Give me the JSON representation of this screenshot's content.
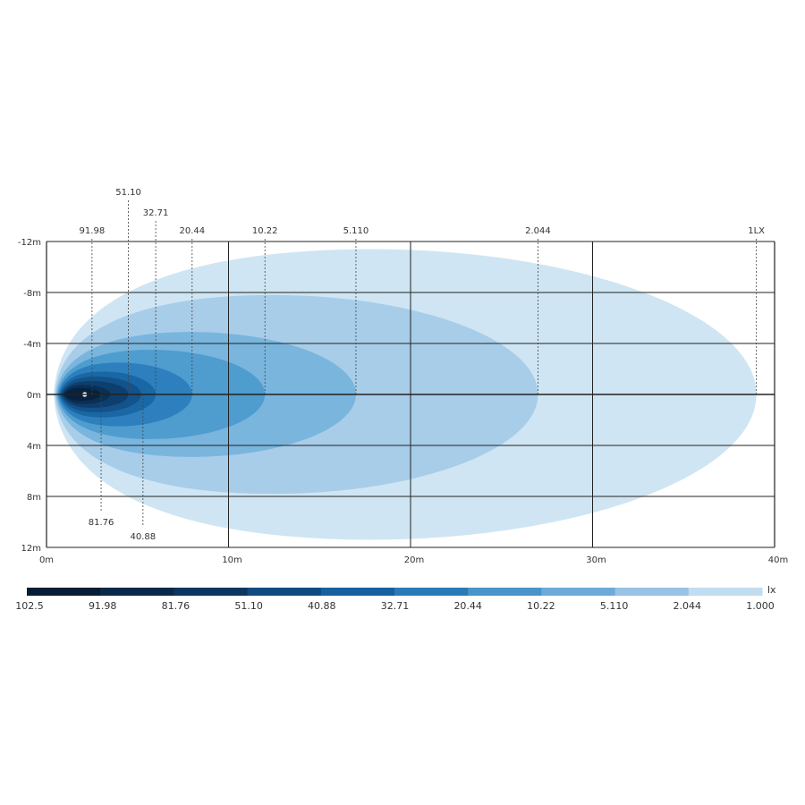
{
  "chart_data": {
    "type": "isolux",
    "x_unit": "m",
    "y_unit": "m",
    "xlim": [
      0,
      40
    ],
    "ylim": [
      -12,
      12
    ],
    "x_ticks": [
      {
        "value": 0,
        "label": "0m"
      },
      {
        "value": 10,
        "label": "10m"
      },
      {
        "value": 20,
        "label": "20m"
      },
      {
        "value": 30,
        "label": "30m"
      },
      {
        "value": 40,
        "label": "40m"
      }
    ],
    "y_ticks": [
      {
        "value": -12,
        "label": "-12m"
      },
      {
        "value": -8,
        "label": "-8m"
      },
      {
        "value": -4,
        "label": "-4m"
      },
      {
        "value": 0,
        "label": "0m"
      },
      {
        "value": 4,
        "label": "4m"
      },
      {
        "value": 8,
        "label": "8m"
      },
      {
        "value": 12,
        "label": "12m"
      }
    ],
    "grid": true,
    "source_x": 2.1,
    "contours": [
      {
        "lux": 1.0,
        "reach": 39.0,
        "half_width": 11.4,
        "color": "#cfe5f3"
      },
      {
        "lux": 2.044,
        "reach": 27.0,
        "half_width": 7.8,
        "color": "#a8cde9"
      },
      {
        "lux": 5.11,
        "reach": 17.0,
        "half_width": 4.9,
        "color": "#7ab5dd"
      },
      {
        "lux": 10.22,
        "reach": 12.0,
        "half_width": 3.5,
        "color": "#4f9ccf"
      },
      {
        "lux": 20.44,
        "reach": 8.0,
        "half_width": 2.5,
        "color": "#2d80bd"
      },
      {
        "lux": 32.71,
        "reach": 6.0,
        "half_width": 1.8,
        "color": "#1a67a5"
      },
      {
        "lux": 40.88,
        "reach": 5.2,
        "half_width": 1.4,
        "color": "#13528a"
      },
      {
        "lux": 51.1,
        "reach": 4.5,
        "half_width": 1.05,
        "color": "#0d3f6e"
      },
      {
        "lux": 81.76,
        "reach": 3.5,
        "half_width": 0.75,
        "color": "#0a2f54"
      },
      {
        "lux": 91.98,
        "reach": 3.0,
        "half_width": 0.5,
        "color": "#07223e"
      }
    ],
    "callouts_top": [
      {
        "label": "91.98",
        "x": 2.5,
        "row": 1
      },
      {
        "label": "51.10",
        "x": 4.5,
        "row": 0
      },
      {
        "label": "32.71",
        "x": 6.0,
        "row": 0.5
      },
      {
        "label": "20.44",
        "x": 8.0,
        "row": 1
      },
      {
        "label": "10.22",
        "x": 12.0,
        "row": 1
      },
      {
        "label": "5.110",
        "x": 17.0,
        "row": 1
      },
      {
        "label": "2.044",
        "x": 27.0,
        "row": 1
      },
      {
        "label": "1LX",
        "x": 39.0,
        "row": 1
      }
    ],
    "callouts_bottom": [
      {
        "label": "81.76",
        "x": 3.0,
        "y_end": 9.2
      },
      {
        "label": "40.88",
        "x": 5.3,
        "y_end": 10.3
      }
    ],
    "legend": {
      "unit": "lx",
      "labels": [
        "102.5",
        "91.98",
        "81.76",
        "51.10",
        "40.88",
        "32.71",
        "20.44",
        "10.22",
        "5.110",
        "2.044",
        "1.000"
      ],
      "colors": [
        "#061d36",
        "#09294a",
        "#0c3660",
        "#114a80",
        "#1760a0",
        "#2a7ab8",
        "#4994c9",
        "#6eaad8",
        "#97c3e5",
        "#c2dcef"
      ]
    }
  }
}
